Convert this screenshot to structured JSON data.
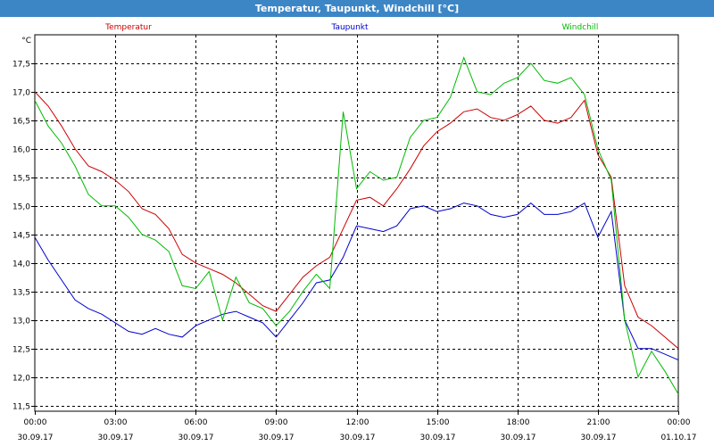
{
  "window": {
    "title": "Temperatur, Taupunkt, Windchill [°C]"
  },
  "chart_data": {
    "type": "line",
    "ylabel": "°C",
    "ylim": [
      11.4,
      18.0
    ],
    "yticks": [
      11.5,
      12.0,
      12.5,
      13.0,
      13.5,
      14.0,
      14.5,
      15.0,
      15.5,
      16.0,
      16.5,
      17.0,
      17.5
    ],
    "ytick_labels": [
      "11,5",
      "12,0",
      "12,5",
      "13,0",
      "13,5",
      "14,0",
      "14,5",
      "15,0",
      "15,5",
      "16,0",
      "16,5",
      "17,0",
      "17,5"
    ],
    "xlim": [
      0,
      24
    ],
    "xticks": [
      0,
      3,
      6,
      9,
      12,
      15,
      18,
      21,
      24
    ],
    "xtick_time": [
      "00:00",
      "03:00",
      "06:00",
      "09:00",
      "12:00",
      "15:00",
      "18:00",
      "21:00",
      "00:00"
    ],
    "xtick_date": [
      "30.09.17",
      "30.09.17",
      "30.09.17",
      "30.09.17",
      "30.09.17",
      "30.09.17",
      "30.09.17",
      "30.09.17",
      "01.10.17"
    ],
    "grid": true,
    "legend": "top",
    "series": [
      {
        "name": "Temperatur",
        "color": "#cc0000",
        "x": [
          0,
          0.5,
          1,
          1.5,
          2,
          2.5,
          3,
          3.5,
          4,
          4.5,
          5,
          5.5,
          6,
          6.5,
          7,
          7.5,
          8,
          8.5,
          9,
          9.5,
          10,
          10.5,
          11,
          11.5,
          12,
          12.5,
          13,
          13.5,
          14,
          14.5,
          15,
          15.5,
          16,
          16.5,
          17,
          17.5,
          18,
          18.5,
          19,
          19.5,
          20,
          20.5,
          21,
          21.5,
          22,
          22.5,
          23,
          23.5,
          24
        ],
        "y": [
          17.0,
          16.75,
          16.4,
          16.0,
          15.7,
          15.6,
          15.45,
          15.25,
          14.95,
          14.85,
          14.6,
          14.15,
          14.0,
          13.9,
          13.8,
          13.65,
          13.45,
          13.25,
          13.15,
          13.45,
          13.75,
          13.95,
          14.1,
          14.6,
          15.1,
          15.15,
          15.0,
          15.3,
          15.65,
          16.05,
          16.3,
          16.45,
          16.65,
          16.7,
          16.55,
          16.5,
          16.6,
          16.75,
          16.5,
          16.45,
          16.55,
          16.85,
          15.9,
          15.5,
          13.6,
          13.05,
          12.9,
          12.7,
          12.5
        ]
      },
      {
        "name": "Taupunkt",
        "color": "#0000cc",
        "x": [
          0,
          0.5,
          1,
          1.5,
          2,
          2.5,
          3,
          3.5,
          4,
          4.5,
          5,
          5.5,
          6,
          6.5,
          7,
          7.5,
          8,
          8.5,
          9,
          9.5,
          10,
          10.5,
          11,
          11.5,
          12,
          12.5,
          13,
          13.5,
          14,
          14.5,
          15,
          15.5,
          16,
          16.5,
          17,
          17.5,
          18,
          18.5,
          19,
          19.5,
          20,
          20.5,
          21,
          21.5,
          22,
          22.5,
          23,
          23.5,
          24
        ],
        "y": [
          14.45,
          14.05,
          13.7,
          13.35,
          13.2,
          13.1,
          12.95,
          12.8,
          12.75,
          12.85,
          12.75,
          12.7,
          12.9,
          13.0,
          13.1,
          13.15,
          13.05,
          12.95,
          12.7,
          13.0,
          13.3,
          13.65,
          13.7,
          14.1,
          14.65,
          14.6,
          14.55,
          14.65,
          14.95,
          15.0,
          14.9,
          14.95,
          15.05,
          15.0,
          14.85,
          14.8,
          14.85,
          15.05,
          14.85,
          14.85,
          14.9,
          15.05,
          14.45,
          14.9,
          13.0,
          12.5,
          12.5,
          12.4,
          12.3
        ]
      },
      {
        "name": "Windchill",
        "color": "#00bb00",
        "x": [
          0,
          0.5,
          1,
          1.5,
          2,
          2.5,
          3,
          3.5,
          4,
          4.5,
          5,
          5.5,
          6,
          6.5,
          7,
          7.5,
          8,
          8.5,
          9,
          9.5,
          10,
          10.5,
          11,
          11.5,
          12,
          12.5,
          13,
          13.5,
          14,
          14.5,
          15,
          15.5,
          16,
          16.5,
          17,
          17.5,
          18,
          18.5,
          19,
          19.5,
          20,
          20.5,
          21,
          21.5,
          22,
          22.5,
          23,
          23.5,
          24
        ],
        "y": [
          16.85,
          16.4,
          16.1,
          15.7,
          15.2,
          15.0,
          15.0,
          14.8,
          14.5,
          14.4,
          14.2,
          13.6,
          13.55,
          13.85,
          13.0,
          13.75,
          13.3,
          13.2,
          12.9,
          13.15,
          13.5,
          13.8,
          13.55,
          16.65,
          15.3,
          15.6,
          15.45,
          15.5,
          16.2,
          16.5,
          16.55,
          16.9,
          17.6,
          17.0,
          16.95,
          17.15,
          17.25,
          17.5,
          17.2,
          17.15,
          17.25,
          16.95,
          16.0,
          15.45,
          13.0,
          12.0,
          12.45,
          12.1,
          11.7
        ]
      }
    ]
  }
}
